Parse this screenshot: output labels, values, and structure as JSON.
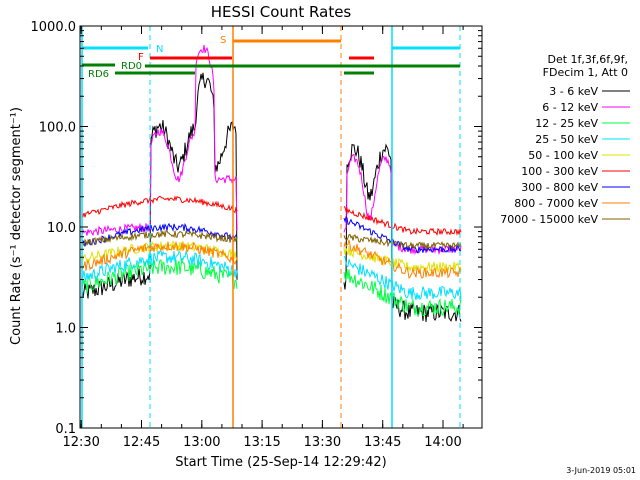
{
  "chart_data": {
    "type": "line",
    "title": "HESSI Count Rates",
    "xlabel": "Start Time (25-Sep-14 12:29:42)",
    "ylabel": "Count Rate (s⁻¹ detector segment⁻¹)",
    "yscale": "log",
    "ylim": [
      0.1,
      1000
    ],
    "xlim_minutes": [
      0,
      100
    ],
    "x_ticks": [
      "12:30",
      "12:45",
      "13:00",
      "13:15",
      "13:30",
      "13:45",
      "14:00"
    ],
    "y_ticks": [
      "1000.0",
      "100.0",
      "10.0",
      "1.0",
      "0.1"
    ],
    "y_tick_values": [
      1000,
      100,
      10,
      1,
      0.1
    ],
    "grid": false,
    "legend_placement": "right",
    "legend_header": [
      "Det 1f,3f,6f,9f,",
      "FDecim 1, Att 0"
    ],
    "series": [
      {
        "name": "3 - 6 keV",
        "color": "#000000"
      },
      {
        "name": "6 - 12 keV",
        "color": "#ff00ff"
      },
      {
        "name": "12 - 25 keV",
        "color": "#00ff40"
      },
      {
        "name": "25 - 50 keV",
        "color": "#00e0ff"
      },
      {
        "name": "50 - 100 keV",
        "color": "#e0e000"
      },
      {
        "name": "100 - 300 keV",
        "color": "#ff0000"
      },
      {
        "name": "300 - 800 keV",
        "color": "#0000ff"
      },
      {
        "name": "800 - 7000 keV",
        "color": "#ff8000"
      },
      {
        "name": "7000 - 15000 keV",
        "color": "#806000"
      }
    ],
    "flag_labels": {
      "n": "N",
      "f": "F",
      "s": "S",
      "rd0": "RD0",
      "rd6": "RD6"
    },
    "flag_colors": {
      "n": "#00e0ff",
      "f": "#ff0000",
      "s": "#ff8000",
      "rd": "#008000"
    }
  },
  "footer_date": "3-Jun-2019 05:01"
}
